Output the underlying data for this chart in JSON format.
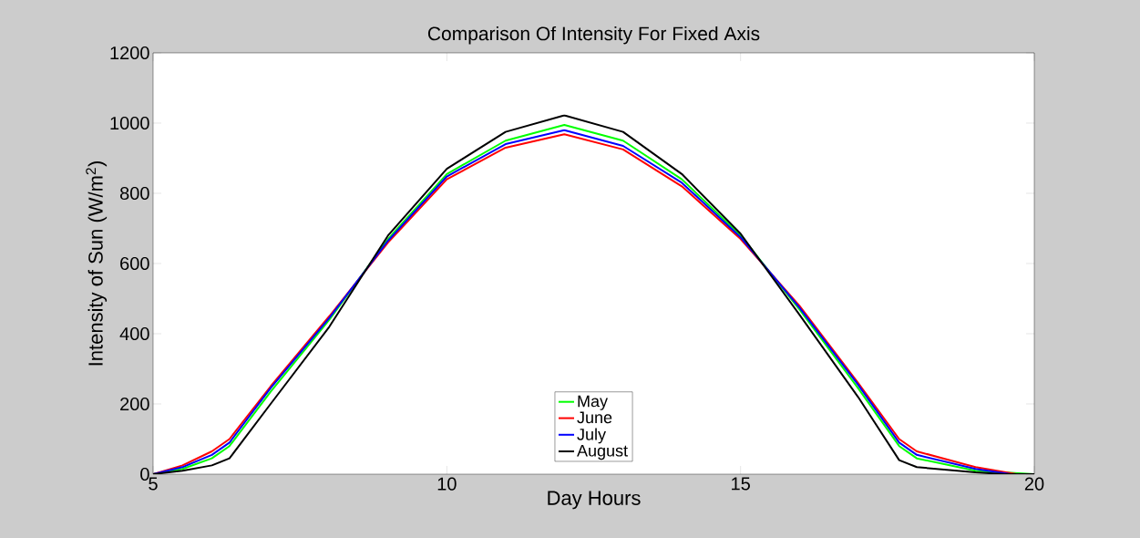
{
  "chart_data": {
    "type": "line",
    "title": "Comparison Of Intensity For Fixed Axis",
    "xlabel": "Day Hours",
    "ylabel": "Intensity of Sun (W/m$^{2}$)",
    "xlim": [
      5,
      20
    ],
    "ylim": [
      0,
      1200
    ],
    "xticks": [
      5,
      10,
      15,
      20
    ],
    "yticks": [
      0,
      200,
      400,
      600,
      800,
      1000,
      1200
    ],
    "grid": false,
    "legend": "bottom",
    "marker": "none",
    "line_style": "solid",
    "series": [
      {
        "name": "May",
        "color": "#00ff00",
        "x": [
          5,
          5.5,
          6,
          6.3,
          7,
          8,
          9,
          10,
          11,
          12,
          13,
          14,
          15,
          16,
          17,
          17.7,
          18,
          19,
          20
        ],
        "values": [
          0,
          15,
          45,
          80,
          235,
          440,
          670,
          855,
          950,
          995,
          950,
          840,
          680,
          470,
          245,
          80,
          45,
          10,
          0
        ]
      },
      {
        "name": "June",
        "color": "#ff0000",
        "x": [
          5,
          5.5,
          6,
          6.3,
          7,
          8,
          9,
          10,
          11,
          12,
          13,
          14,
          15,
          16,
          17,
          17.7,
          18,
          19,
          19.7,
          20
        ],
        "values": [
          0,
          25,
          65,
          100,
          250,
          450,
          660,
          840,
          930,
          968,
          925,
          820,
          670,
          480,
          260,
          100,
          65,
          20,
          0,
          0
        ]
      },
      {
        "name": "July",
        "color": "#0000ff",
        "x": [
          5,
          5.5,
          6,
          6.3,
          7,
          8,
          9,
          10,
          11,
          12,
          13,
          14,
          15,
          16,
          17,
          17.7,
          18,
          19,
          19.6,
          20
        ],
        "values": [
          0,
          20,
          55,
          90,
          245,
          445,
          665,
          848,
          940,
          980,
          935,
          830,
          675,
          475,
          255,
          90,
          55,
          15,
          0,
          0
        ]
      },
      {
        "name": "August",
        "color": "#000000",
        "x": [
          5,
          5.5,
          6,
          6.3,
          7,
          8,
          9,
          10,
          11,
          12,
          13,
          14,
          15,
          16,
          17,
          17.7,
          18,
          19,
          19.5,
          20
        ],
        "values": [
          0,
          10,
          25,
          45,
          200,
          420,
          680,
          870,
          975,
          1022,
          975,
          855,
          685,
          455,
          220,
          40,
          20,
          5,
          0,
          0
        ]
      }
    ]
  }
}
